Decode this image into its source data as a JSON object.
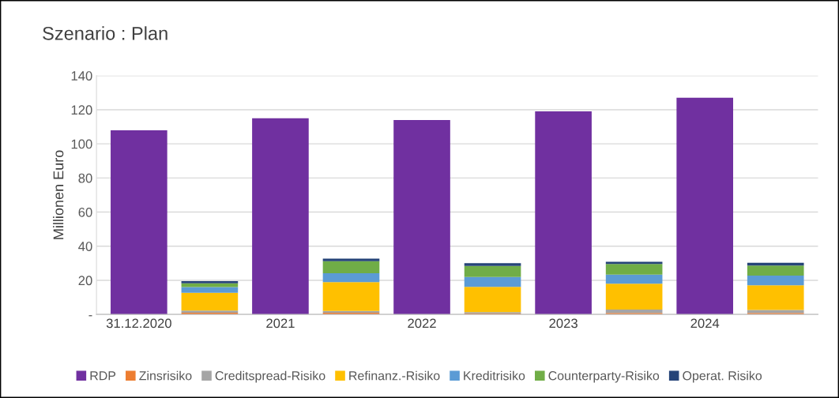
{
  "chart_data": {
    "type": "bar",
    "title": "Szenario : Plan",
    "ylabel": "Millionen Euro",
    "categories": [
      "31.12.2020",
      null,
      "2021",
      null,
      "2022",
      null,
      "2023",
      null,
      "2024",
      null
    ],
    "stacked": true,
    "series": [
      {
        "name": "RDP",
        "color": "#7030a0",
        "values": [
          108,
          null,
          115,
          null,
          114,
          null,
          119,
          null,
          127,
          null
        ]
      },
      {
        "name": "Zinsrisiko",
        "color": "#ed7d31",
        "values": [
          null,
          1,
          null,
          1,
          null,
          0.5,
          null,
          0.9,
          null,
          0.9
        ]
      },
      {
        "name": "Creditspread-Risiko",
        "color": "#a5a5a5",
        "values": [
          null,
          1.3,
          null,
          1,
          null,
          0.9,
          null,
          2,
          null,
          1.7
        ]
      },
      {
        "name": "Refinanz.-Risiko",
        "color": "#ffc000",
        "values": [
          null,
          10.4,
          null,
          16.9,
          null,
          14.8,
          null,
          15.1,
          null,
          14.5
        ]
      },
      {
        "name": "Kreditrisiko",
        "color": "#5b9bd5",
        "values": [
          null,
          3.3,
          null,
          5.2,
          null,
          5.8,
          null,
          5.3,
          null,
          5.7
        ]
      },
      {
        "name": "Counterparty-Risiko",
        "color": "#70ad47",
        "values": [
          null,
          2.2,
          null,
          7.1,
          null,
          6.4,
          null,
          6.3,
          null,
          5.9
        ]
      },
      {
        "name": "Operat. Risiko",
        "color": "#264478",
        "values": [
          null,
          1.3,
          null,
          1.5,
          null,
          1.7,
          null,
          1.3,
          null,
          1.6
        ]
      }
    ],
    "ylim": [
      0,
      140
    ],
    "yticks": [
      {
        "value": 0,
        "label": "-"
      },
      20,
      40,
      60,
      80,
      100,
      120,
      140
    ],
    "grid": "y",
    "legend": "bottom"
  }
}
